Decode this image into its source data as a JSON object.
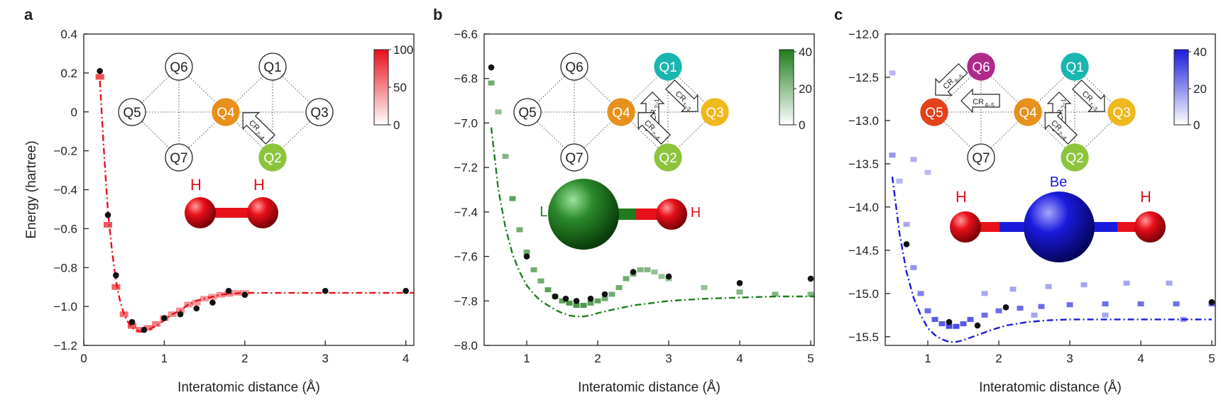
{
  "panels": [
    {
      "letter": "a",
      "ylabel": "Energy (hartree)",
      "xlabel": "Interatomic distance (Å)",
      "xlim": [
        0,
        4.1
      ],
      "ylim": [
        -1.2,
        0.4
      ],
      "xticks": [
        0,
        1,
        2,
        3,
        4
      ],
      "xtick_labels": [
        "0",
        "1",
        "2",
        "3",
        "4"
      ],
      "yticks": [
        0.4,
        0.2,
        0,
        -0.2,
        -0.4,
        -0.6,
        -0.8,
        -1.0,
        -1.2
      ],
      "ytick_labels": [
        "0.4",
        "0.2",
        "0",
        "−0.2",
        "−0.4",
        "−0.6",
        "−0.8",
        "−1.0",
        "−1.2"
      ],
      "colorbar": {
        "ticks": [
          "100",
          "50",
          "0"
        ],
        "color": "#e8101a"
      },
      "accent": "#e8101a",
      "qubits": [
        {
          "id": "Q6",
          "label": "Q6",
          "fill": "#ffffff"
        },
        {
          "id": "Q1",
          "label": "Q1",
          "fill": "#ffffff"
        },
        {
          "id": "Q5",
          "label": "Q5",
          "fill": "#ffffff"
        },
        {
          "id": "Q4",
          "label": "Q4",
          "fill": "#e8901c"
        },
        {
          "id": "Q3",
          "label": "Q3",
          "fill": "#ffffff"
        },
        {
          "id": "Q7",
          "label": "Q7",
          "fill": "#ffffff"
        },
        {
          "id": "Q2",
          "label": "Q2",
          "fill": "#8cc43c"
        }
      ],
      "gates": [
        {
          "label": "CR",
          "sub": "2–4"
        }
      ],
      "molecule": {
        "atoms": [
          "H",
          "H"
        ]
      }
    },
    {
      "letter": "b",
      "ylabel": "",
      "xlabel": "Interatomic distance (Å)",
      "xlim": [
        0.4,
        5.05
      ],
      "ylim": [
        -8.0,
        -6.6
      ],
      "xticks": [
        1,
        2,
        3,
        4,
        5
      ],
      "xtick_labels": [
        "1",
        "2",
        "3",
        "4",
        "5"
      ],
      "yticks": [
        -6.6,
        -6.8,
        -7.0,
        -7.2,
        -7.4,
        -7.6,
        -7.8,
        -8.0
      ],
      "ytick_labels": [
        "−6.6",
        "−6.8",
        "−7.0",
        "−7.2",
        "−7.4",
        "−7.6",
        "−7.8",
        "−8.0"
      ],
      "colorbar": {
        "ticks": [
          "40",
          "20",
          "0"
        ],
        "color": "#1f7d1f"
      },
      "accent": "#1f7d1f",
      "qubits": [
        {
          "id": "Q6",
          "label": "Q6",
          "fill": "#ffffff"
        },
        {
          "id": "Q1",
          "label": "Q1",
          "fill": "#1bb5b0"
        },
        {
          "id": "Q5",
          "label": "Q5",
          "fill": "#ffffff"
        },
        {
          "id": "Q4",
          "label": "Q4",
          "fill": "#e8901c"
        },
        {
          "id": "Q3",
          "label": "Q3",
          "fill": "#f0b81c"
        },
        {
          "id": "Q7",
          "label": "Q7",
          "fill": "#ffffff"
        },
        {
          "id": "Q2",
          "label": "Q2",
          "fill": "#8cc43c"
        }
      ],
      "gates": [
        {
          "label": "CR",
          "sub": "1–3"
        },
        {
          "label": "CR",
          "sub": "2–1"
        },
        {
          "label": "CR",
          "sub": "2–4"
        }
      ],
      "molecule": {
        "atoms": [
          "Li",
          "H"
        ]
      }
    },
    {
      "letter": "c",
      "ylabel": "",
      "xlabel": "Interatomic distance (Å)",
      "xlim": [
        0.4,
        5.05
      ],
      "ylim": [
        -15.6,
        -12.0
      ],
      "xticks": [
        1,
        2,
        3,
        4,
        5
      ],
      "xtick_labels": [
        "1",
        "2",
        "3",
        "4",
        "5"
      ],
      "yticks": [
        -12.0,
        -12.5,
        -13.0,
        -13.5,
        -14.0,
        -14.5,
        -15.0,
        -15.5
      ],
      "ytick_labels": [
        "−12.0",
        "−12.5",
        "−13.0",
        "−13.5",
        "−14.0",
        "−14.5",
        "−15.0",
        "−15.5"
      ],
      "colorbar": {
        "ticks": [
          "40",
          "20",
          "0"
        ],
        "color": "#1a1adc"
      },
      "accent": "#1a1adc",
      "qubits": [
        {
          "id": "Q6",
          "label": "Q6",
          "fill": "#b02a8a"
        },
        {
          "id": "Q1",
          "label": "Q1",
          "fill": "#1bb5b0"
        },
        {
          "id": "Q5",
          "label": "Q5",
          "fill": "#e2421c"
        },
        {
          "id": "Q4",
          "label": "Q4",
          "fill": "#e8901c"
        },
        {
          "id": "Q3",
          "label": "Q3",
          "fill": "#f0b81c"
        },
        {
          "id": "Q7",
          "label": "Q7",
          "fill": "#ffffff"
        },
        {
          "id": "Q2",
          "label": "Q2",
          "fill": "#8cc43c"
        }
      ],
      "gates": [
        {
          "label": "CR",
          "sub": "6–5"
        },
        {
          "label": "CR",
          "sub": "4–5"
        },
        {
          "label": "CR",
          "sub": "1–3"
        },
        {
          "label": "CR",
          "sub": "2–1"
        },
        {
          "label": "CR",
          "sub": "2–4"
        }
      ],
      "molecule": {
        "atoms": [
          "H",
          "Be",
          "H"
        ]
      }
    }
  ],
  "chart_data": [
    {
      "type": "scatter",
      "panel": "a",
      "xlabel": "Interatomic distance (Å)",
      "ylabel": "Energy (hartree)",
      "xlim": [
        0,
        4.1
      ],
      "ylim": [
        -1.2,
        0.4
      ],
      "series": [
        {
          "name": "",
          "kind": "points",
          "x": [
            0.2,
            0.3,
            0.4,
            0.6,
            0.75,
            1.0,
            1.2,
            1.4,
            1.6,
            1.8,
            2.0,
            3.0,
            4.0
          ],
          "y": [
            0.21,
            -0.53,
            -0.84,
            -1.08,
            -1.12,
            -1.06,
            -1.04,
            -1.01,
            -0.98,
            -0.92,
            -0.94,
            -0.92,
            -0.92
          ]
        },
        {
          "name": "",
          "kind": "dashdot",
          "x": [
            0.2,
            0.25,
            0.3,
            0.35,
            0.4,
            0.45,
            0.5,
            0.55,
            0.6,
            0.65,
            0.7,
            0.74,
            0.8,
            0.9,
            1.0,
            1.1,
            1.2,
            1.3,
            1.4,
            1.5,
            1.6,
            1.7,
            1.8,
            2.0,
            2.2,
            2.5,
            3.0,
            3.5,
            4.0,
            4.1
          ],
          "y": [
            0.16,
            -0.2,
            -0.51,
            -0.71,
            -0.87,
            -0.97,
            -1.04,
            -1.08,
            -1.11,
            -1.12,
            -1.13,
            -1.13,
            -1.12,
            -1.1,
            -1.07,
            -1.04,
            -1.02,
            -0.99,
            -0.97,
            -0.96,
            -0.95,
            -0.94,
            -0.935,
            -0.93,
            -0.93,
            -0.93,
            -0.93,
            -0.93,
            -0.93,
            -0.93
          ]
        }
      ],
      "heatmap": {
        "max": 100,
        "cells": [
          [
            0.2,
            0.18,
            90
          ],
          [
            0.3,
            -0.58,
            85
          ],
          [
            0.4,
            -0.9,
            80
          ],
          [
            0.5,
            -1.04,
            70
          ],
          [
            0.6,
            -1.1,
            80
          ],
          [
            0.7,
            -1.12,
            70
          ],
          [
            0.8,
            -1.11,
            60
          ],
          [
            0.9,
            -1.09,
            60
          ],
          [
            1.0,
            -1.06,
            55
          ],
          [
            1.1,
            -1.04,
            50
          ],
          [
            1.2,
            -1.02,
            50
          ],
          [
            1.3,
            -0.99,
            50
          ],
          [
            1.4,
            -0.98,
            45
          ],
          [
            1.5,
            -0.96,
            45
          ],
          [
            1.6,
            -0.95,
            45
          ],
          [
            1.7,
            -0.94,
            50
          ],
          [
            1.8,
            -0.935,
            50
          ],
          [
            1.9,
            -0.93,
            40
          ],
          [
            2.0,
            -0.93,
            40
          ]
        ]
      }
    },
    {
      "type": "scatter",
      "panel": "b",
      "xlabel": "Interatomic distance (Å)",
      "ylabel": "",
      "xlim": [
        0.4,
        5.05
      ],
      "ylim": [
        -8.0,
        -6.6
      ],
      "series": [
        {
          "name": "",
          "kind": "points",
          "x": [
            0.5,
            1.0,
            1.4,
            1.55,
            1.7,
            1.9,
            2.1,
            2.5,
            3.0,
            4.0,
            5.0
          ],
          "y": [
            -6.75,
            -7.6,
            -7.78,
            -7.79,
            -7.8,
            -7.79,
            -7.77,
            -7.67,
            -7.69,
            -7.72,
            -7.7
          ]
        },
        {
          "name": "",
          "kind": "dashdot",
          "x": [
            0.5,
            0.6,
            0.7,
            0.8,
            0.9,
            1.0,
            1.1,
            1.2,
            1.3,
            1.4,
            1.5,
            1.6,
            1.7,
            1.8,
            1.9,
            2.0,
            2.2,
            2.5,
            3.0,
            3.5,
            4.0,
            4.5,
            5.05
          ],
          "y": [
            -7.02,
            -7.3,
            -7.47,
            -7.59,
            -7.67,
            -7.73,
            -7.77,
            -7.8,
            -7.82,
            -7.84,
            -7.855,
            -7.865,
            -7.87,
            -7.87,
            -7.865,
            -7.855,
            -7.84,
            -7.82,
            -7.8,
            -7.79,
            -7.785,
            -7.78,
            -7.78
          ]
        }
      ],
      "heatmap": {
        "max": 40,
        "cells": [
          [
            0.5,
            -6.82,
            30
          ],
          [
            0.6,
            -6.95,
            20
          ],
          [
            0.7,
            -7.15,
            25
          ],
          [
            0.8,
            -7.34,
            35
          ],
          [
            0.9,
            -7.48,
            30
          ],
          [
            1.0,
            -7.58,
            30
          ],
          [
            1.1,
            -7.66,
            30
          ],
          [
            1.2,
            -7.71,
            30
          ],
          [
            1.3,
            -7.75,
            35
          ],
          [
            1.4,
            -7.78,
            35
          ],
          [
            1.5,
            -7.8,
            35
          ],
          [
            1.6,
            -7.81,
            40
          ],
          [
            1.7,
            -7.82,
            40
          ],
          [
            1.8,
            -7.82,
            40
          ],
          [
            1.9,
            -7.81,
            35
          ],
          [
            2.0,
            -7.8,
            35
          ],
          [
            2.1,
            -7.79,
            30
          ],
          [
            2.2,
            -7.77,
            30
          ],
          [
            2.3,
            -7.74,
            30
          ],
          [
            2.4,
            -7.7,
            30
          ],
          [
            2.5,
            -7.68,
            25
          ],
          [
            2.6,
            -7.66,
            25
          ],
          [
            2.7,
            -7.66,
            25
          ],
          [
            2.8,
            -7.67,
            20
          ],
          [
            2.9,
            -7.69,
            20
          ],
          [
            3.0,
            -7.7,
            20
          ],
          [
            3.5,
            -7.74,
            20
          ],
          [
            4.0,
            -7.76,
            25
          ],
          [
            4.5,
            -7.77,
            25
          ],
          [
            5.0,
            -7.77,
            25
          ]
        ]
      }
    },
    {
      "type": "scatter",
      "panel": "c",
      "xlabel": "Interatomic distance (Å)",
      "ylabel": "",
      "xlim": [
        0.4,
        5.05
      ],
      "ylim": [
        -15.6,
        -12.0
      ],
      "series": [
        {
          "name": "",
          "kind": "points",
          "x": [
            0.7,
            1.3,
            1.7,
            2.1,
            5.0
          ],
          "y": [
            -14.43,
            -15.33,
            -15.37,
            -15.16,
            -15.1
          ]
        },
        {
          "name": "",
          "kind": "dashdot",
          "x": [
            0.5,
            0.6,
            0.7,
            0.8,
            0.9,
            1.0,
            1.1,
            1.2,
            1.3,
            1.4,
            1.5,
            1.7,
            1.9,
            2.1,
            2.4,
            2.7,
            3.0,
            3.5,
            4.0,
            4.5,
            5.0
          ],
          "y": [
            -13.65,
            -14.3,
            -14.75,
            -15.05,
            -15.25,
            -15.4,
            -15.48,
            -15.53,
            -15.56,
            -15.56,
            -15.54,
            -15.48,
            -15.42,
            -15.37,
            -15.33,
            -15.31,
            -15.3,
            -15.3,
            -15.3,
            -15.3,
            -15.3
          ]
        }
      ],
      "heatmap": {
        "max": 40,
        "cells": [
          [
            0.5,
            -12.45,
            10
          ],
          [
            0.5,
            -13.4,
            20
          ],
          [
            0.6,
            -13.7,
            10
          ],
          [
            0.7,
            -14.2,
            15
          ],
          [
            0.8,
            -14.7,
            20
          ],
          [
            0.9,
            -15.0,
            25
          ],
          [
            1.0,
            -15.2,
            30
          ],
          [
            1.1,
            -15.3,
            35
          ],
          [
            1.2,
            -15.35,
            35
          ],
          [
            1.3,
            -15.38,
            40
          ],
          [
            1.4,
            -15.38,
            40
          ],
          [
            1.5,
            -15.35,
            35
          ],
          [
            1.6,
            -15.3,
            35
          ],
          [
            1.8,
            -15.25,
            30
          ],
          [
            2.0,
            -15.2,
            30
          ],
          [
            2.3,
            -15.17,
            30
          ],
          [
            2.6,
            -15.15,
            30
          ],
          [
            3.0,
            -15.13,
            30
          ],
          [
            3.5,
            -15.12,
            30
          ],
          [
            4.0,
            -15.12,
            30
          ],
          [
            4.5,
            -15.12,
            30
          ],
          [
            5.0,
            -15.12,
            30
          ],
          [
            1.8,
            -15.0,
            15
          ],
          [
            2.2,
            -14.95,
            15
          ],
          [
            2.7,
            -14.92,
            15
          ],
          [
            3.2,
            -14.9,
            15
          ],
          [
            3.8,
            -14.88,
            15
          ],
          [
            4.4,
            -14.88,
            15
          ],
          [
            1.0,
            -13.6,
            10
          ],
          [
            0.8,
            -13.45,
            12
          ],
          [
            2.5,
            -15.25,
            15
          ],
          [
            3.5,
            -15.25,
            15
          ],
          [
            4.6,
            -15.3,
            20
          ]
        ]
      }
    }
  ]
}
